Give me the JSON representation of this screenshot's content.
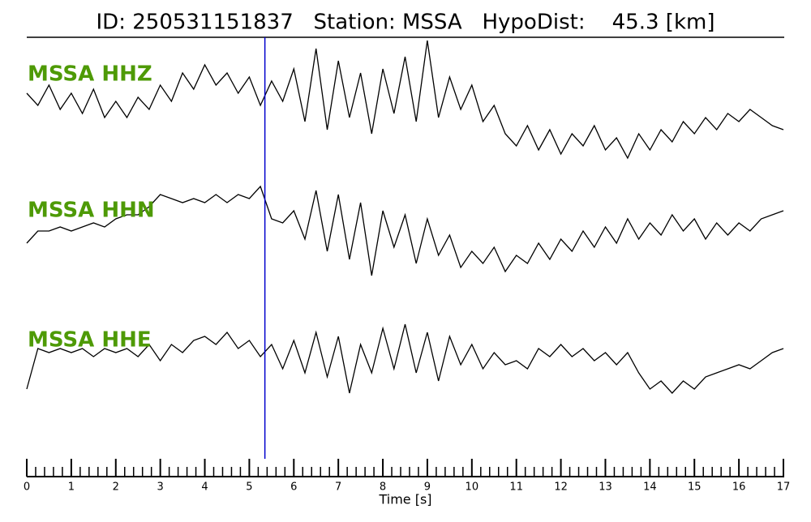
{
  "chart_data": {
    "type": "waveform",
    "title": "ID: 250531151837   Station: MSSA   HypoDist:    45.3 [km]",
    "xlabel": "Time [s]",
    "x": [
      0,
      0.25,
      0.5,
      0.75,
      1,
      1.25,
      1.5,
      1.75,
      2,
      2.25,
      2.5,
      2.75,
      3,
      3.25,
      3.5,
      3.75,
      4,
      4.25,
      4.5,
      4.75,
      5,
      5.25,
      5.5,
      5.75,
      6,
      6.25,
      6.5,
      6.75,
      7,
      7.25,
      7.5,
      7.75,
      8,
      8.25,
      8.5,
      8.75,
      9,
      9.25,
      9.5,
      9.75,
      10,
      10.25,
      10.5,
      10.75,
      11,
      11.25,
      11.5,
      11.75,
      12,
      12.25,
      12.5,
      12.75,
      13,
      13.25,
      13.5,
      13.75,
      14,
      14.25,
      14.5,
      14.75,
      15,
      15.25,
      15.5,
      15.75,
      16,
      16.25,
      16.5,
      16.75,
      17
    ],
    "xlim": [
      0,
      17
    ],
    "xticks": [
      0,
      1,
      2,
      3,
      4,
      5,
      6,
      7,
      8,
      9,
      10,
      11,
      12,
      13,
      14,
      15,
      16,
      17
    ],
    "x_minor_per_major": 5,
    "ylim": [
      -1.6,
      1.6
    ],
    "label_color": "#4e9a06",
    "pick_time": 5.35,
    "pick_color": "#0000cc",
    "series": [
      {
        "name": "MSSA HHZ",
        "color": "#000000",
        "values": [
          0.1,
          -0.2,
          0.3,
          -0.3,
          0.1,
          -0.4,
          0.2,
          -0.5,
          -0.1,
          -0.5,
          0,
          -0.3,
          0.3,
          -0.1,
          0.6,
          0.2,
          0.8,
          0.3,
          0.6,
          0.1,
          0.5,
          -0.2,
          0.4,
          -0.1,
          0.7,
          -0.6,
          1.2,
          -0.8,
          0.9,
          -0.5,
          0.6,
          -0.9,
          0.7,
          -0.4,
          1.0,
          -0.6,
          1.4,
          -0.5,
          0.5,
          -0.3,
          0.3,
          -0.6,
          -0.2,
          -0.9,
          -1.2,
          -0.7,
          -1.3,
          -0.8,
          -1.4,
          -0.9,
          -1.2,
          -0.7,
          -1.3,
          -1.0,
          -1.5,
          -0.9,
          -1.3,
          -0.8,
          -1.1,
          -0.6,
          -0.9,
          -0.5,
          -0.8,
          -0.4,
          -0.6,
          -0.3,
          -0.5,
          -0.7,
          -0.8
        ]
      },
      {
        "name": "MSSA HHN",
        "color": "#000000",
        "values": [
          -0.4,
          -0.1,
          -0.1,
          0,
          -0.1,
          0,
          0.1,
          0,
          0.2,
          0.3,
          0.3,
          0.5,
          0.8,
          0.7,
          0.6,
          0.7,
          0.6,
          0.8,
          0.6,
          0.8,
          0.7,
          1.0,
          0.2,
          0.1,
          0.4,
          -0.3,
          0.9,
          -0.6,
          0.8,
          -0.8,
          0.6,
          -1.2,
          0.4,
          -0.5,
          0.3,
          -0.9,
          0.2,
          -0.7,
          -0.2,
          -1.0,
          -0.6,
          -0.9,
          -0.5,
          -1.1,
          -0.7,
          -0.9,
          -0.4,
          -0.8,
          -0.3,
          -0.6,
          -0.1,
          -0.5,
          0,
          -0.4,
          0.2,
          -0.3,
          0.1,
          -0.2,
          0.3,
          -0.1,
          0.2,
          -0.3,
          0.1,
          -0.2,
          0.1,
          -0.1,
          0.2,
          0.3,
          0.4
        ]
      },
      {
        "name": "MSSA HHE",
        "color": "#000000",
        "values": [
          -0.8,
          0.2,
          0.1,
          0.2,
          0.1,
          0.2,
          0,
          0.2,
          0.1,
          0.2,
          0,
          0.3,
          -0.1,
          0.3,
          0.1,
          0.4,
          0.5,
          0.3,
          0.6,
          0.2,
          0.4,
          0,
          0.3,
          -0.3,
          0.4,
          -0.4,
          0.6,
          -0.5,
          0.5,
          -0.9,
          0.3,
          -0.4,
          0.7,
          -0.3,
          0.8,
          -0.4,
          0.6,
          -0.6,
          0.5,
          -0.2,
          0.3,
          -0.3,
          0.1,
          -0.2,
          -0.1,
          -0.3,
          0.2,
          0,
          0.3,
          0,
          0.2,
          -0.1,
          0.1,
          -0.2,
          0.1,
          -0.4,
          -0.8,
          -0.6,
          -0.9,
          -0.6,
          -0.8,
          -0.5,
          -0.4,
          -0.3,
          -0.2,
          -0.3,
          -0.1,
          0.1,
          0.2
        ]
      }
    ]
  }
}
